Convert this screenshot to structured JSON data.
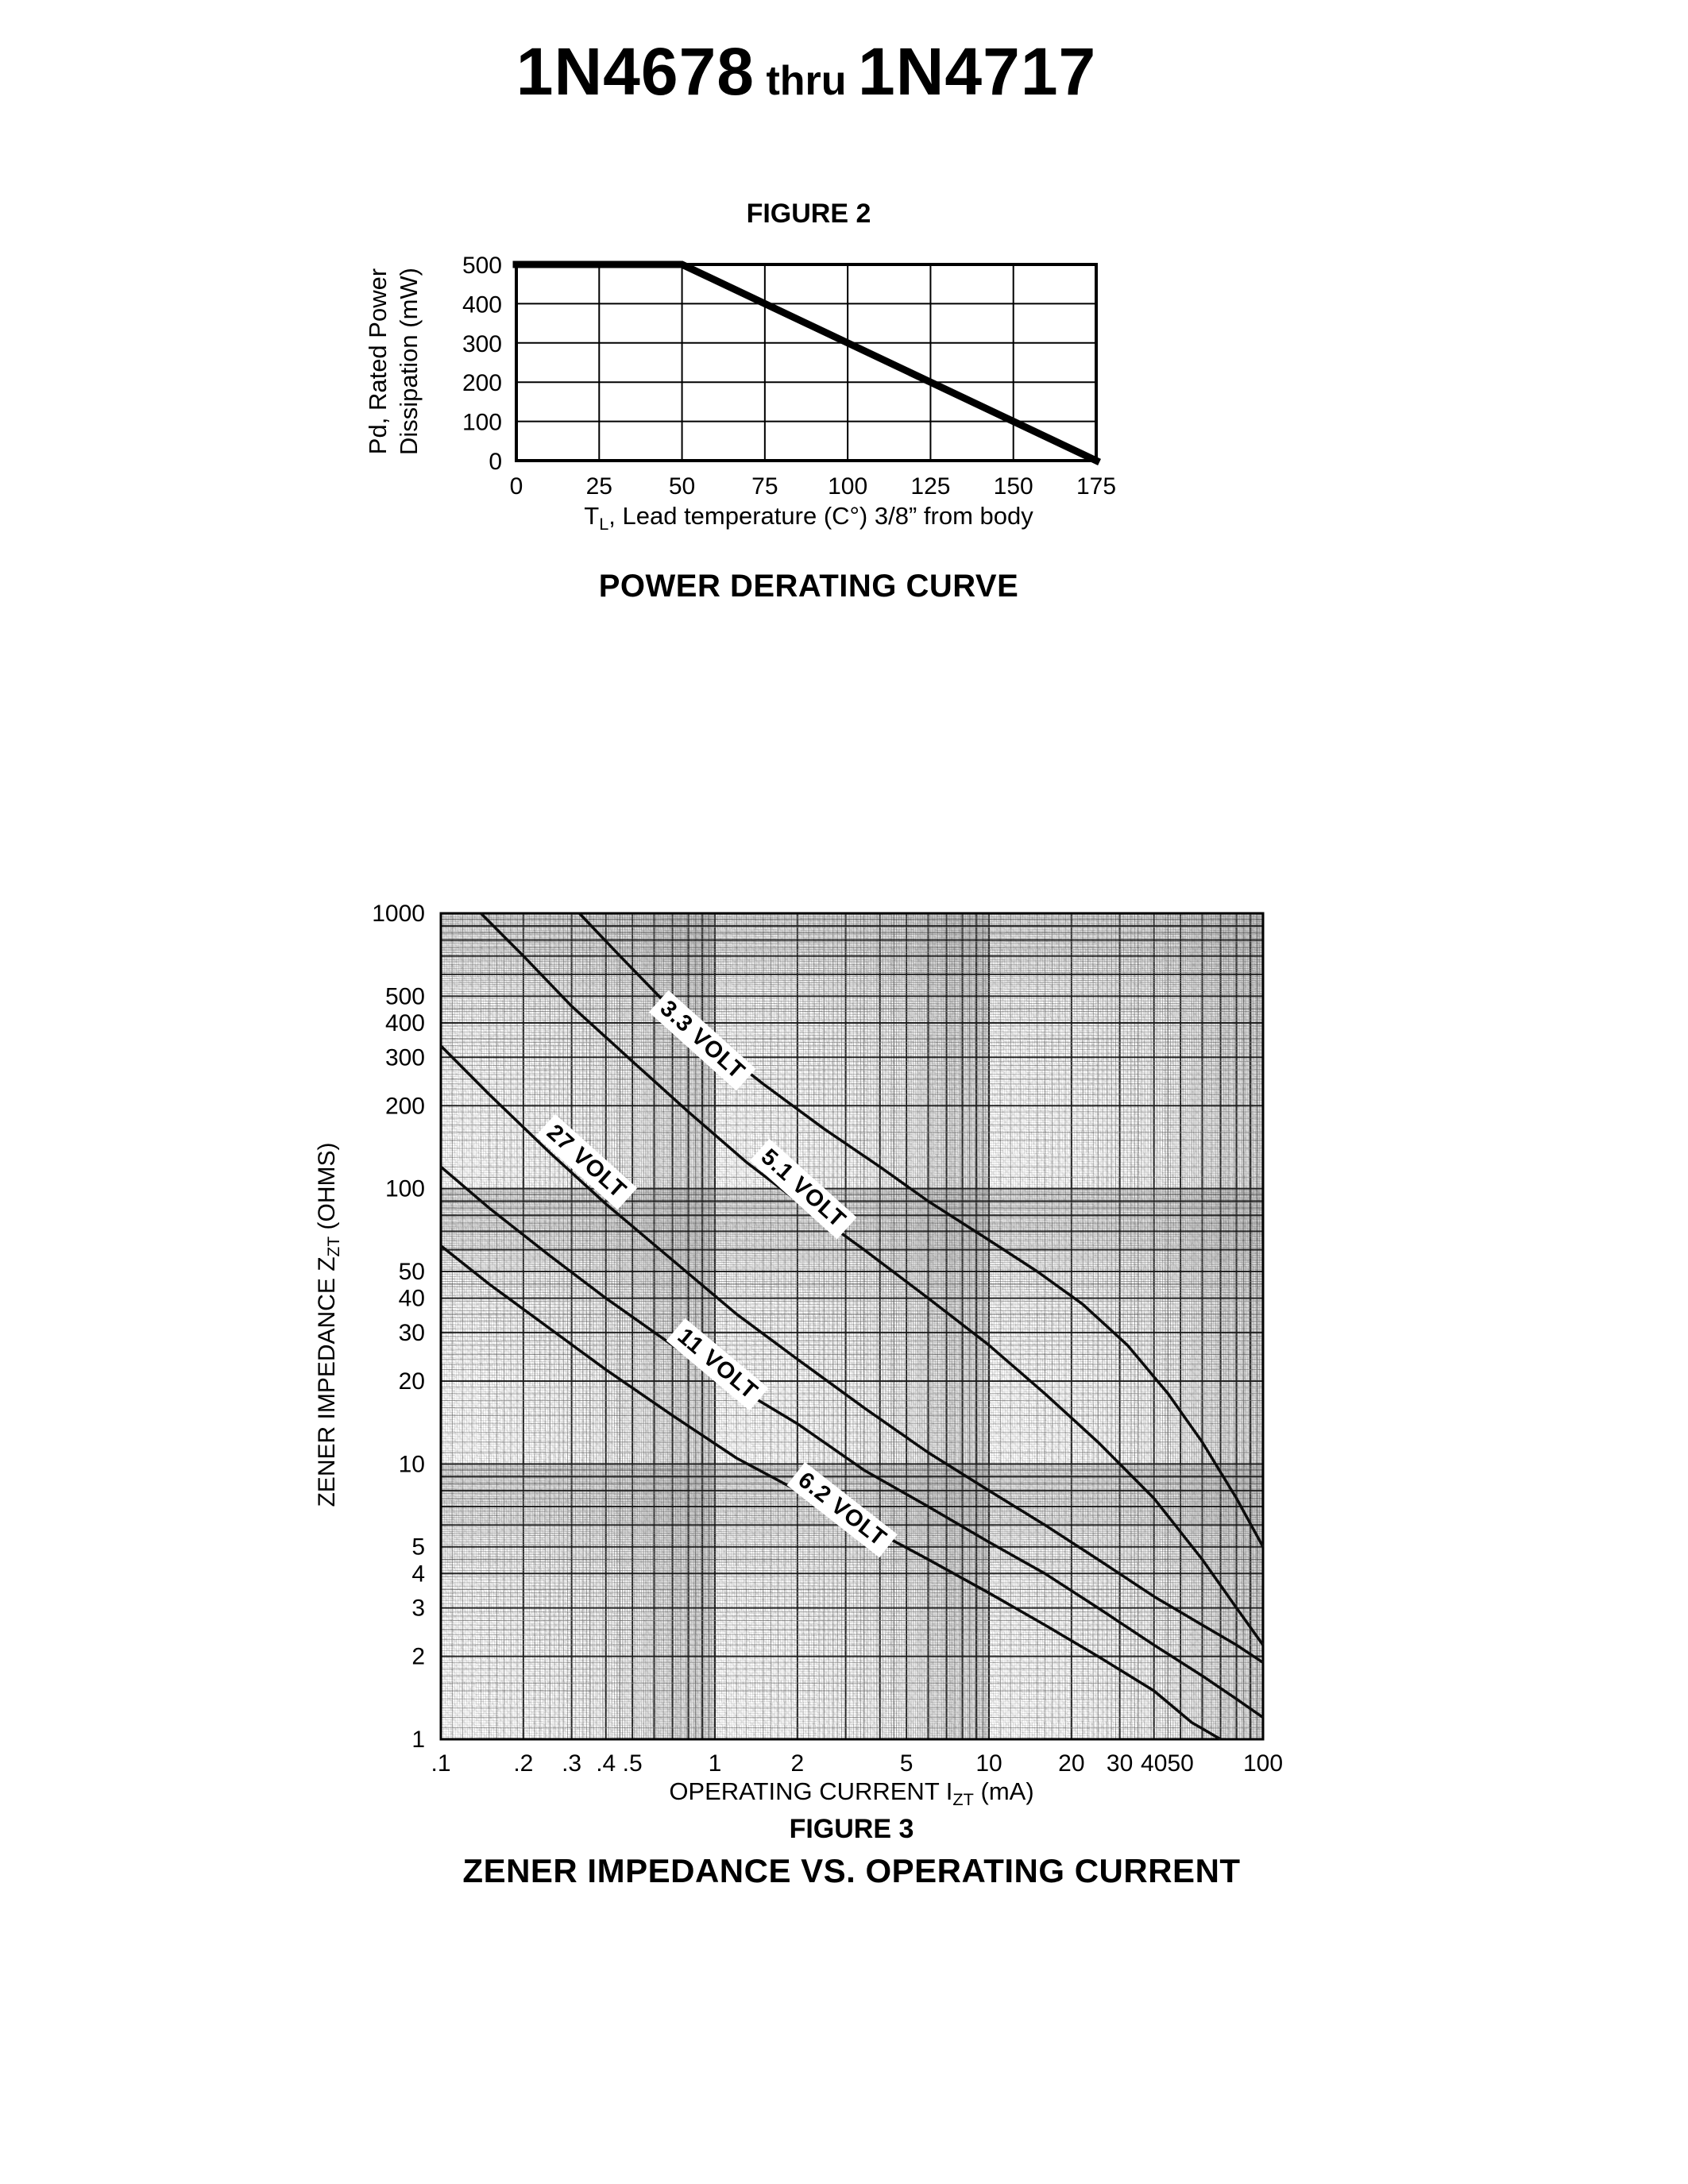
{
  "page": {
    "title": {
      "part1": "1N4678",
      "thru": "thru",
      "part2": "1N4717"
    }
  },
  "figure2": {
    "heading": "FIGURE 2",
    "caption": "POWER DERATING CURVE",
    "xaxis": {
      "pre": "T",
      "sub": "L",
      "post": ", Lead temperature (C°) 3/8” from body"
    },
    "yaxis": {
      "line1": "Pd, Rated Power",
      "line2": "Dissipation (mW)"
    }
  },
  "figure3": {
    "heading": "FIGURE 3",
    "caption": "ZENER IMPEDANCE VS. OPERATING CURRENT",
    "xaxis": {
      "pre": "OPERATING CURRENT I",
      "sub": "ZT",
      "post": " (mA)"
    },
    "yaxis": {
      "pre": "ZENER IMPEDANCE Z",
      "sub": "ZT",
      "post": " (OHMS)"
    }
  },
  "chart_data": [
    {
      "id": "power-derating-curve",
      "type": "line",
      "title": "POWER DERATING CURVE",
      "xlabel": "TL, Lead temperature (C°) 3/8” from body",
      "ylabel": "Pd, Rated Power Dissipation (mW)",
      "xlim": [
        0,
        175
      ],
      "ylim": [
        0,
        500
      ],
      "xticks": [
        0,
        25,
        50,
        75,
        100,
        125,
        150,
        175
      ],
      "yticks": [
        0,
        100,
        200,
        300,
        400,
        500
      ],
      "grid": true,
      "legend": false,
      "series": [
        {
          "name": "rated power dissipation",
          "points": [
            [
              0,
              500
            ],
            [
              50,
              500
            ],
            [
              175,
              0
            ]
          ]
        }
      ]
    },
    {
      "id": "zener-impedance-vs-operating-current",
      "type": "line",
      "title": "ZENER IMPEDANCE VS. OPERATING CURRENT",
      "xlabel": "OPERATING CURRENT IZT (mA)",
      "ylabel": "ZENER IMPEDANCE ZZT (OHMS)",
      "xscale": "log",
      "yscale": "log",
      "xlim": [
        0.1,
        100
      ],
      "ylim": [
        1,
        1000
      ],
      "xtick_values": [
        0.1,
        0.2,
        0.3,
        0.4,
        0.5,
        1,
        2,
        5,
        10,
        20,
        30,
        40,
        50,
        100
      ],
      "xtick_labels": [
        ".1",
        ".2",
        ".3",
        ".4",
        ".5",
        "1",
        "2",
        "5",
        "10",
        "20",
        "30",
        "40",
        "50",
        "100"
      ],
      "ytick_values": [
        1000,
        500,
        400,
        300,
        200,
        100,
        50,
        40,
        30,
        20,
        10,
        5,
        4,
        3,
        2,
        1
      ],
      "ytick_labels": [
        "1000",
        "500",
        "400",
        "300",
        "200",
        "100",
        "50",
        "40",
        "30",
        "20",
        "10",
        "5",
        "4",
        "3",
        "2",
        "1"
      ],
      "grid": "dense-log",
      "legend": "inline-labels",
      "series": [
        {
          "name": "3.3 VOLT",
          "label_pos": [
            0.9,
            345
          ],
          "label_angle": 42,
          "points": [
            [
              0.32,
              1000
            ],
            [
              0.45,
              700
            ],
            [
              0.65,
              480
            ],
            [
              1,
              330
            ],
            [
              1.5,
              240
            ],
            [
              2.5,
              165
            ],
            [
              4,
              120
            ],
            [
              6,
              90
            ],
            [
              10,
              65
            ],
            [
              15,
              50
            ],
            [
              22,
              38
            ],
            [
              32,
              27
            ],
            [
              45,
              18
            ],
            [
              60,
              12
            ],
            [
              80,
              7.5
            ],
            [
              100,
              5
            ]
          ]
        },
        {
          "name": "5.1 VOLT",
          "label_pos": [
            2.1,
            100
          ],
          "label_angle": 42,
          "points": [
            [
              0.14,
              1000
            ],
            [
              0.2,
              700
            ],
            [
              0.3,
              460
            ],
            [
              0.5,
              290
            ],
            [
              0.8,
              190
            ],
            [
              1.3,
              125
            ],
            [
              2,
              90
            ],
            [
              3.5,
              60
            ],
            [
              6,
              40
            ],
            [
              10,
              27
            ],
            [
              16,
              18
            ],
            [
              25,
              12
            ],
            [
              40,
              7.5
            ],
            [
              60,
              4.5
            ],
            [
              80,
              3
            ],
            [
              100,
              2.2
            ]
          ]
        },
        {
          "name": "27 VOLT",
          "label_pos": [
            0.34,
            125
          ],
          "label_angle": 42,
          "points": [
            [
              0.1,
              330
            ],
            [
              0.15,
              220
            ],
            [
              0.25,
              135
            ],
            [
              0.4,
              88
            ],
            [
              0.7,
              55
            ],
            [
              1.2,
              35
            ],
            [
              2,
              24
            ],
            [
              3.5,
              16
            ],
            [
              6,
              11
            ],
            [
              10,
              8
            ],
            [
              16,
              6
            ],
            [
              25,
              4.5
            ],
            [
              40,
              3.3
            ],
            [
              60,
              2.6
            ],
            [
              80,
              2.2
            ],
            [
              100,
              1.9
            ]
          ]
        },
        {
          "name": "11 VOLT",
          "label_pos": [
            1.02,
            23
          ],
          "label_angle": 40,
          "points": [
            [
              0.1,
              120
            ],
            [
              0.15,
              85
            ],
            [
              0.25,
              57
            ],
            [
              0.4,
              40
            ],
            [
              0.7,
              27
            ],
            [
              1.2,
              19
            ],
            [
              2,
              14
            ],
            [
              3.5,
              9.5
            ],
            [
              6,
              7
            ],
            [
              10,
              5.2
            ],
            [
              16,
              4
            ],
            [
              25,
              3
            ],
            [
              40,
              2.2
            ],
            [
              60,
              1.7
            ],
            [
              80,
              1.4
            ],
            [
              100,
              1.2
            ]
          ]
        },
        {
          "name": "6.2 VOLT",
          "label_pos": [
            2.9,
            6.8
          ],
          "label_angle": 38,
          "points": [
            [
              0.1,
              62
            ],
            [
              0.15,
              45
            ],
            [
              0.25,
              31
            ],
            [
              0.4,
              22
            ],
            [
              0.7,
              15
            ],
            [
              1.2,
              10.5
            ],
            [
              2,
              8
            ],
            [
              3.5,
              6
            ],
            [
              6,
              4.5
            ],
            [
              10,
              3.4
            ],
            [
              16,
              2.6
            ],
            [
              25,
              2
            ],
            [
              40,
              1.5
            ],
            [
              55,
              1.15
            ],
            [
              70,
              1
            ]
          ]
        }
      ]
    }
  ]
}
